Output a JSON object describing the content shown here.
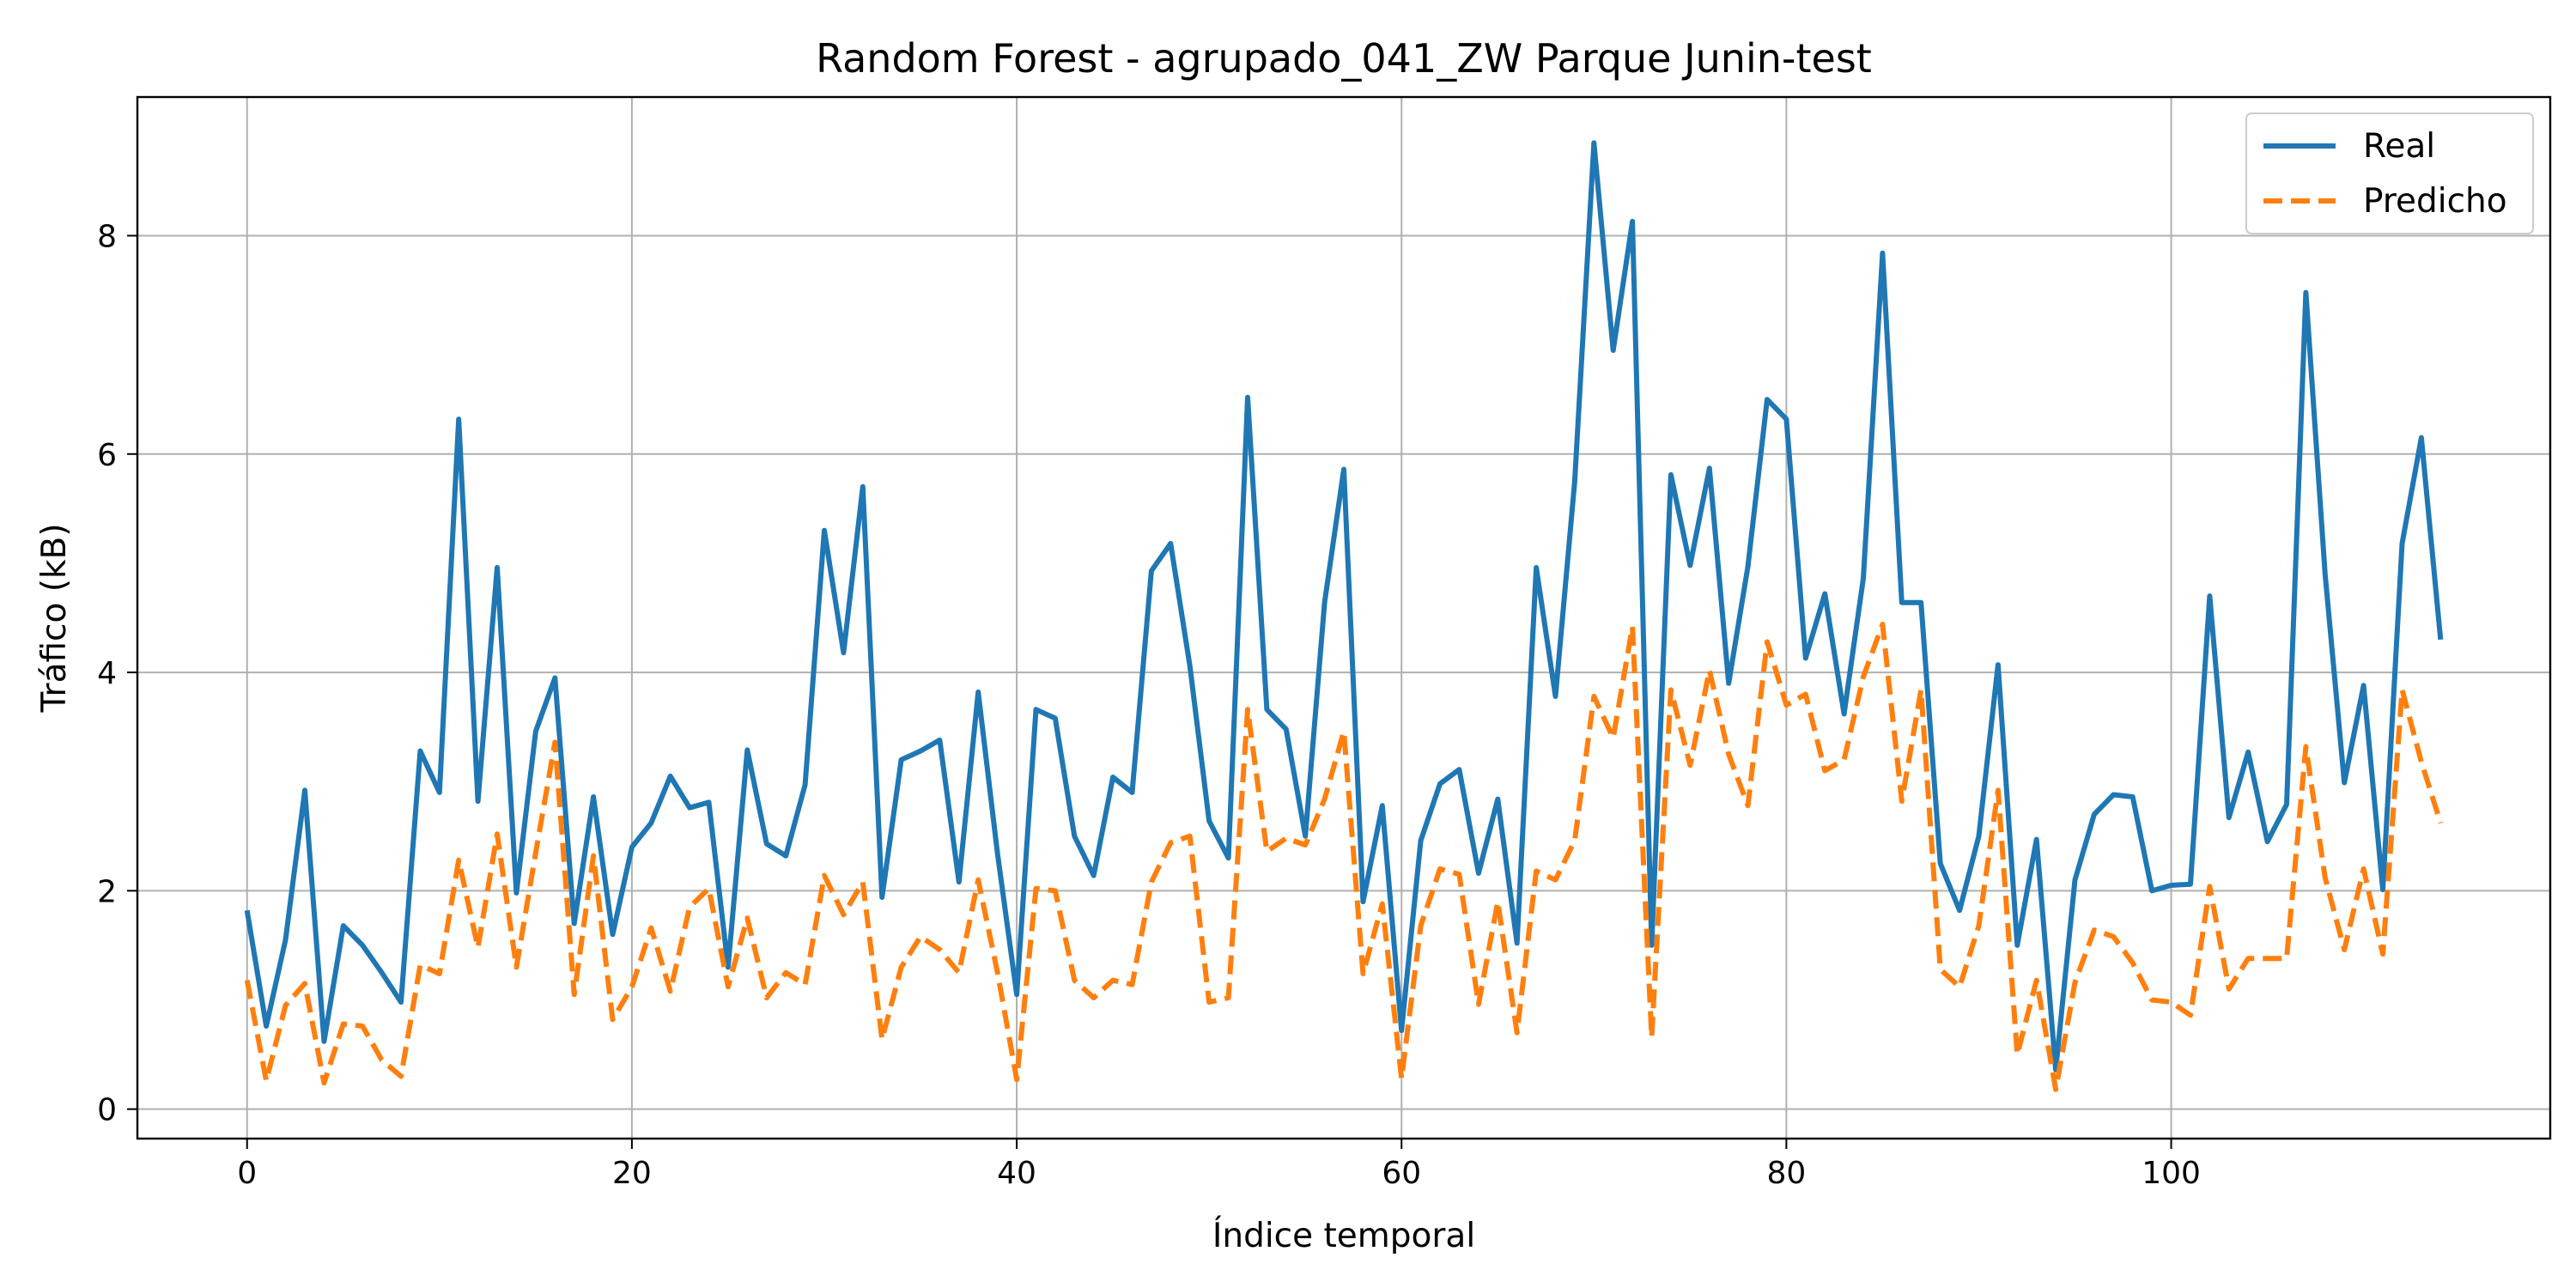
{
  "chart_data": {
    "type": "line",
    "title": "Random Forest - agrupado_041_ZW Parque Junin-test",
    "xlabel": "Índice temporal",
    "ylabel": "Tráfico (kB)",
    "xlim": [
      -5.7,
      119.7
    ],
    "ylim": [
      -0.27,
      9.27
    ],
    "x_ticks": [
      0,
      20,
      40,
      60,
      80,
      100
    ],
    "y_ticks": [
      0,
      2,
      4,
      6,
      8
    ],
    "grid": true,
    "legend_position": "top-right",
    "series": [
      {
        "name": "Real",
        "color": "#1f77b4",
        "style": "solid",
        "values": [
          1.82,
          0.76,
          1.55,
          2.92,
          0.62,
          1.68,
          1.5,
          1.25,
          0.98,
          3.28,
          2.9,
          6.32,
          2.82,
          4.96,
          1.98,
          3.46,
          3.95,
          1.7,
          2.86,
          1.6,
          2.4,
          2.62,
          3.05,
          2.76,
          2.81,
          1.3,
          3.29,
          2.43,
          2.32,
          2.97,
          5.3,
          4.18,
          5.7,
          1.94,
          3.2,
          3.28,
          3.38,
          2.08,
          3.82,
          2.34,
          1.05,
          3.66,
          3.58,
          2.5,
          2.14,
          3.04,
          2.9,
          4.93,
          5.18,
          4.06,
          2.64,
          2.3,
          6.52,
          3.66,
          3.48,
          2.5,
          4.64,
          5.86,
          1.9,
          2.78,
          0.72,
          2.46,
          2.98,
          3.11,
          2.16,
          2.84,
          1.52,
          4.96,
          3.78,
          5.75,
          8.85,
          6.95,
          8.13,
          1.5,
          5.81,
          4.98,
          5.87,
          3.9,
          4.97,
          6.5,
          6.32,
          4.13,
          4.72,
          3.62,
          4.86,
          7.84,
          4.64,
          4.64,
          2.25,
          1.82,
          2.5,
          4.07,
          1.5,
          2.47,
          0.36,
          2.1,
          2.7,
          2.88,
          2.86,
          2.0,
          2.05,
          2.06,
          4.7,
          2.67,
          3.27,
          2.45,
          2.79,
          7.48,
          4.9,
          2.99,
          3.88,
          2.01,
          5.18,
          6.15,
          4.3
        ]
      },
      {
        "name": "Predicho",
        "color": "#ff7f0e",
        "style": "dashed",
        "values": [
          1.18,
          0.26,
          0.95,
          1.15,
          0.24,
          0.78,
          0.76,
          0.45,
          0.3,
          1.32,
          1.24,
          2.28,
          1.48,
          2.52,
          1.3,
          2.35,
          3.36,
          1.05,
          2.32,
          0.82,
          1.12,
          1.66,
          1.08,
          1.85,
          2.02,
          1.12,
          1.75,
          1.02,
          1.25,
          1.14,
          2.14,
          1.78,
          2.08,
          0.64,
          1.3,
          1.58,
          1.46,
          1.25,
          2.1,
          1.25,
          0.27,
          2.02,
          2.0,
          1.18,
          1.02,
          1.18,
          1.14,
          2.08,
          2.44,
          2.5,
          0.98,
          1.02,
          3.66,
          2.36,
          2.48,
          2.42,
          2.84,
          3.46,
          1.24,
          1.88,
          0.28,
          1.68,
          2.2,
          2.15,
          0.96,
          1.9,
          0.7,
          2.18,
          2.1,
          2.46,
          3.78,
          3.4,
          4.42,
          0.66,
          3.84,
          3.15,
          4.02,
          3.25,
          2.78,
          4.28,
          3.7,
          3.8,
          3.1,
          3.2,
          3.96,
          4.44,
          2.82,
          3.84,
          1.28,
          1.12,
          1.68,
          2.92,
          0.5,
          1.18,
          0.18,
          1.16,
          1.64,
          1.58,
          1.34,
          1.0,
          0.98,
          0.86,
          2.04,
          1.1,
          1.38,
          1.38,
          1.38,
          3.32,
          2.12,
          1.46,
          2.2,
          1.42,
          3.84,
          3.18,
          2.62
        ]
      }
    ]
  }
}
